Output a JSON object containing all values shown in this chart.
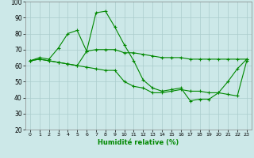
{
  "title": "",
  "xlabel": "Humidité relative (%)",
  "ylabel": "",
  "background_color": "#cce8e8",
  "grid_color": "#aacccc",
  "line_color": "#008800",
  "xlim": [
    -0.5,
    23.5
  ],
  "ylim": [
    20,
    100
  ],
  "yticks": [
    20,
    30,
    40,
    50,
    60,
    70,
    80,
    90,
    100
  ],
  "xticks": [
    0,
    1,
    2,
    3,
    4,
    5,
    6,
    7,
    8,
    9,
    10,
    11,
    12,
    13,
    14,
    15,
    16,
    17,
    18,
    19,
    20,
    21,
    22,
    23
  ],
  "series": [
    {
      "x": [
        0,
        1,
        2,
        3,
        4,
        5,
        6,
        7,
        8,
        9,
        10,
        11,
        12,
        13,
        14,
        15,
        16,
        17,
        18,
        19,
        20,
        21,
        22,
        23
      ],
      "y": [
        63,
        65,
        64,
        71,
        80,
        82,
        69,
        93,
        94,
        84,
        73,
        63,
        51,
        46,
        44,
        45,
        46,
        38,
        39,
        39,
        43,
        50,
        58,
        64
      ]
    },
    {
      "x": [
        0,
        1,
        2,
        3,
        4,
        5,
        6,
        7,
        8,
        9,
        10,
        11,
        12,
        13,
        14,
        15,
        16,
        17,
        18,
        19,
        20,
        21,
        22,
        23
      ],
      "y": [
        63,
        64,
        63,
        62,
        61,
        60,
        69,
        70,
        70,
        70,
        68,
        68,
        67,
        66,
        65,
        65,
        65,
        64,
        64,
        64,
        64,
        64,
        64,
        64
      ]
    },
    {
      "x": [
        0,
        1,
        2,
        3,
        4,
        5,
        6,
        7,
        8,
        9,
        10,
        11,
        12,
        13,
        14,
        15,
        16,
        17,
        18,
        19,
        20,
        21,
        22,
        23
      ],
      "y": [
        63,
        64,
        63,
        62,
        61,
        60,
        59,
        58,
        57,
        57,
        50,
        47,
        46,
        43,
        43,
        44,
        45,
        44,
        44,
        43,
        43,
        42,
        41,
        63
      ]
    }
  ]
}
